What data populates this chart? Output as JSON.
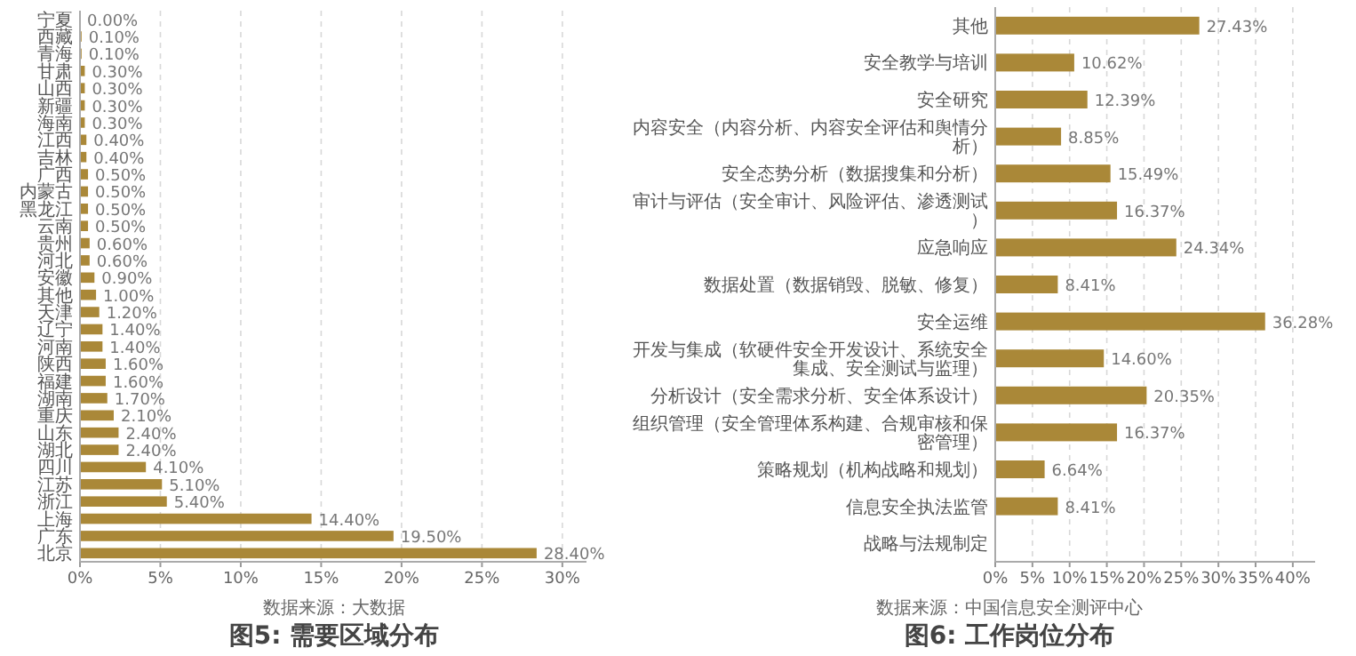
{
  "chart_data": [
    {
      "type": "bar",
      "orientation": "horizontal",
      "title": "图5: 需要区域分布",
      "annotations": [
        "数据来源：大数据"
      ],
      "categories": [
        "宁夏",
        "西藏",
        "青海",
        "甘肃",
        "山西",
        "新疆",
        "海南",
        "江西",
        "吉林",
        "广西",
        "内蒙古",
        "黑龙江",
        "云南",
        "贵州",
        "河北",
        "安徽",
        "其他",
        "天津",
        "辽宁",
        "河南",
        "陕西",
        "福建",
        "湖南",
        "重庆",
        "山东",
        "湖北",
        "四川",
        "江苏",
        "浙江",
        "上海",
        "广东",
        "北京"
      ],
      "values": [
        0,
        0.1,
        0.1,
        0.3,
        0.3,
        0.3,
        0.3,
        0.4,
        0.4,
        0.5,
        0.5,
        0.5,
        0.5,
        0.6,
        0.6,
        0.9,
        1.0,
        1.2,
        1.4,
        1.4,
        1.6,
        1.6,
        1.7,
        2.1,
        2.4,
        2.4,
        4.1,
        5.1,
        5.4,
        14.4,
        19.5,
        28.4
      ],
      "value_labels": [
        "0.00%",
        "0.10%",
        "0.10%",
        "0.30%",
        "0.30%",
        "0.30%",
        "0.30%",
        "0.40%",
        "0.40%",
        "0.50%",
        "0.50%",
        "0.50%",
        "0.50%",
        "0.60%",
        "0.60%",
        "0.90%",
        "1.00%",
        "1.20%",
        "1.40%",
        "1.40%",
        "1.60%",
        "1.60%",
        "1.70%",
        "2.10%",
        "2.40%",
        "2.40%",
        "4.10%",
        "5.10%",
        "5.40%",
        "14.40%",
        "19.50%",
        "28.40%"
      ],
      "color": "#aa8838",
      "xlim": [
        0,
        31.5
      ],
      "xticks": [
        {
          "value": 0,
          "label": "0%"
        },
        {
          "value": 5,
          "label": "5%"
        },
        {
          "value": 10,
          "label": "10%"
        },
        {
          "value": 15,
          "label": "15%"
        },
        {
          "value": 20,
          "label": "20%"
        },
        {
          "value": 25,
          "label": "25%"
        },
        {
          "value": 30,
          "label": "30%"
        }
      ],
      "grid": "x"
    },
    {
      "type": "bar",
      "orientation": "horizontal",
      "title": "图6: 工作岗位分布",
      "annotations": [
        "数据来源：中国信息安全测评中心"
      ],
      "categories": [
        "其他",
        "安全教学与培训",
        "安全研究",
        "内容安全（内容分析、内容安全评估和舆情分析）",
        "安全态势分析（数据搜集和分析）",
        "审计与评估（安全审计、风险评估、渗透测试）",
        "应急响应",
        "数据处置（数据销毁、脱敏、修复）",
        "安全运维",
        "开发与集成（软硬件安全开发设计、系统安全集成、安全测试与监理）",
        "分析设计（安全需求分析、安全体系设计）",
        "组织管理（安全管理体系构建、合规审核和保密管理）",
        "策略规划（机构战略和规划）",
        "信息安全执法监管",
        "战略与法规制定"
      ],
      "values": [
        27.43,
        10.62,
        12.39,
        8.85,
        15.49,
        16.37,
        24.34,
        8.41,
        36.28,
        14.6,
        20.35,
        16.37,
        6.64,
        8.41,
        null
      ],
      "value_labels": [
        "27.43%",
        "10.62%",
        "12.39%",
        "8.85%",
        "15.49%",
        "16.37%",
        "24.34%",
        "8.41%",
        "36.28%",
        "14.60%",
        "20.35%",
        "16.37%",
        "6.64%",
        "8.41%",
        null
      ],
      "color": "#aa8838",
      "xlim": [
        0,
        43
      ],
      "xticks": [
        {
          "value": 0,
          "label": "0%"
        },
        {
          "value": 5,
          "label": "5%"
        },
        {
          "value": 10,
          "label": "10%"
        },
        {
          "value": 15,
          "label": "15%"
        },
        {
          "value": 20,
          "label": "20%"
        },
        {
          "value": 25,
          "label": "25%"
        },
        {
          "value": 30,
          "label": "30%"
        },
        {
          "value": 35,
          "label": "35%"
        },
        {
          "value": 40,
          "label": "40%"
        }
      ],
      "grid": "x"
    }
  ]
}
